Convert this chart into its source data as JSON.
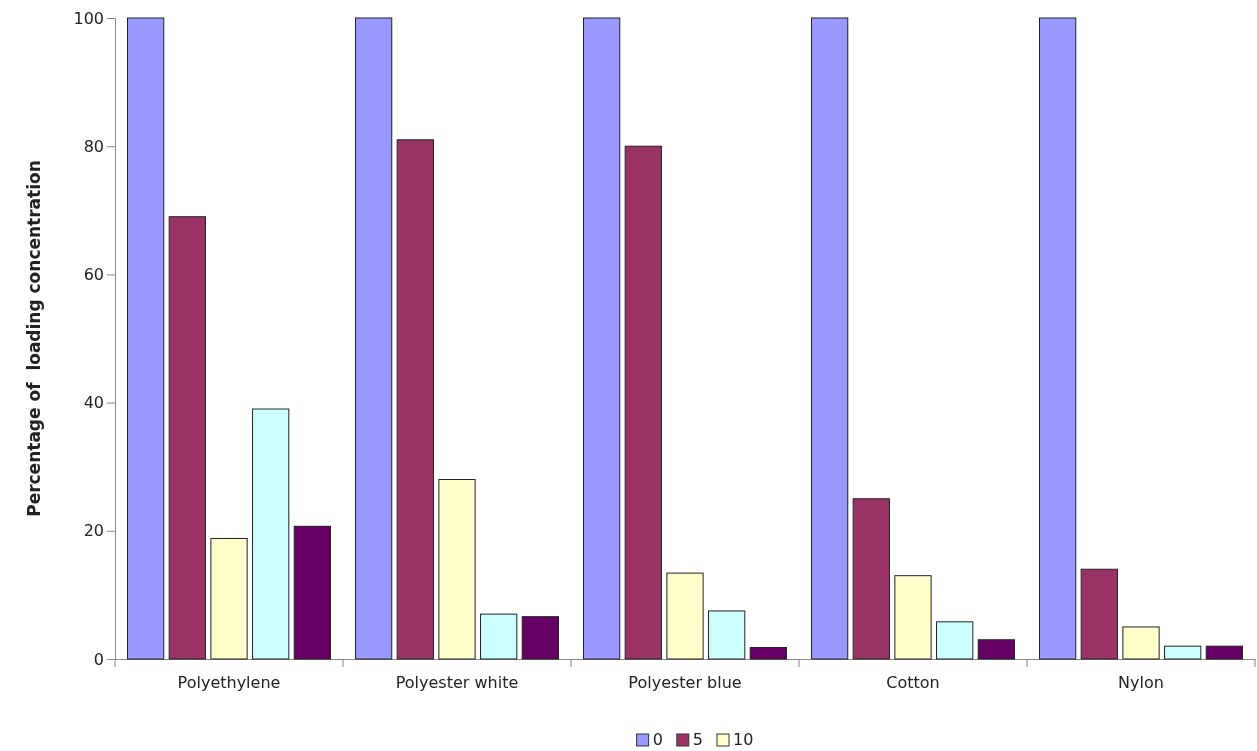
{
  "chart_data": {
    "type": "bar",
    "ylabel": "Percentage of  loading concentration",
    "categories": [
      "Polyethylene",
      "Polyester white",
      "Polyester blue",
      "Cotton",
      "Nylon"
    ],
    "series": [
      {
        "name": "0",
        "color": "#9999ff",
        "values": [
          100,
          100,
          100,
          100,
          100
        ]
      },
      {
        "name": "5",
        "color": "#993366",
        "values": [
          69,
          81,
          80,
          25,
          14
        ]
      },
      {
        "name": "10",
        "color": "#ffffcc",
        "values": [
          18.8,
          28,
          13.4,
          13,
          5
        ]
      },
      {
        "color": "#ccffff",
        "values": [
          39,
          7,
          7.5,
          5.8,
          2
        ]
      },
      {
        "color": "#660066",
        "values": [
          20.7,
          6.6,
          1.8,
          3,
          2
        ]
      }
    ],
    "ylim": [
      0,
      100
    ],
    "yticks": [
      0,
      20,
      40,
      60,
      80,
      100
    ],
    "grid": false,
    "legend": "bottom"
  }
}
